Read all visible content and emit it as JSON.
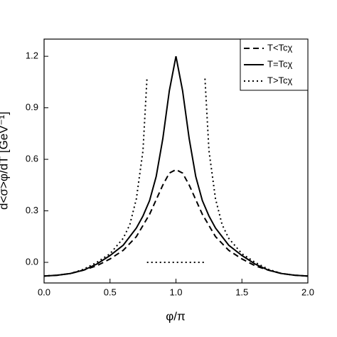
{
  "chart_data": {
    "type": "line",
    "x_label": "φ/π",
    "y_label": "d<σ>φ/dT [GeV⁻¹]",
    "xlim": [
      0,
      2
    ],
    "ylim": [
      -0.12,
      1.3
    ],
    "xticks": [
      {
        "value": 0,
        "label": "0.0"
      },
      {
        "value": 0.5,
        "label": "0.5"
      },
      {
        "value": 1,
        "label": "1.0"
      },
      {
        "value": 1.5,
        "label": "1.5"
      },
      {
        "value": 2,
        "label": "2.0"
      }
    ],
    "yticks": [
      {
        "value": 0,
        "label": "0.0"
      },
      {
        "value": 0.3,
        "label": "0.3"
      },
      {
        "value": 0.6,
        "label": "0.6"
      },
      {
        "value": 0.9,
        "label": "0.9"
      },
      {
        "value": 1.2,
        "label": "1.2"
      }
    ],
    "legend_position": "upper right",
    "series": [
      {
        "name": "T<Tcχ",
        "color": "#000000",
        "dash": "8,5",
        "x": [
          0,
          0.1,
          0.2,
          0.3,
          0.4,
          0.5,
          0.6,
          0.7,
          0.8,
          0.9,
          0.95,
          1.0,
          1.05,
          1.1,
          1.2,
          1.3,
          1.4,
          1.5,
          1.6,
          1.7,
          1.8,
          1.9,
          2.0
        ],
        "values": [
          -0.08,
          -0.075,
          -0.065,
          -0.045,
          -0.02,
          0.02,
          0.07,
          0.15,
          0.28,
          0.45,
          0.52,
          0.54,
          0.52,
          0.45,
          0.28,
          0.15,
          0.07,
          0.02,
          -0.02,
          -0.045,
          -0.065,
          -0.075,
          -0.08
        ]
      },
      {
        "name": "T=Tcχ",
        "color": "#000000",
        "dash": "none",
        "x": [
          0,
          0.1,
          0.2,
          0.3,
          0.4,
          0.5,
          0.6,
          0.7,
          0.75,
          0.8,
          0.85,
          0.9,
          0.95,
          1.0,
          1.05,
          1.1,
          1.15,
          1.2,
          1.25,
          1.3,
          1.4,
          1.5,
          1.6,
          1.7,
          1.8,
          1.9,
          2.0
        ],
        "values": [
          -0.08,
          -0.075,
          -0.065,
          -0.045,
          -0.01,
          0.04,
          0.1,
          0.2,
          0.27,
          0.36,
          0.5,
          0.72,
          1.0,
          1.2,
          1.0,
          0.72,
          0.5,
          0.36,
          0.27,
          0.2,
          0.1,
          0.04,
          -0.01,
          -0.045,
          -0.065,
          -0.075,
          -0.08
        ]
      },
      {
        "name": "T>Tcχ",
        "color": "#000000",
        "dash": "2,4",
        "x": [
          0,
          0.1,
          0.2,
          0.3,
          0.4,
          0.5,
          0.6,
          0.65,
          0.7,
          0.75,
          0.78,
          0.78,
          0.78,
          1.22,
          1.22,
          1.22,
          1.25,
          1.3,
          1.35,
          1.4,
          1.5,
          1.6,
          1.7,
          1.8,
          1.9,
          2.0
        ],
        "values": [
          -0.08,
          -0.075,
          -0.065,
          -0.04,
          0.0,
          0.05,
          0.14,
          0.22,
          0.37,
          0.65,
          1.07,
          null,
          0,
          0,
          null,
          1.07,
          0.65,
          0.37,
          0.22,
          0.14,
          0.05,
          0.0,
          -0.04,
          -0.065,
          -0.075,
          -0.08
        ]
      }
    ]
  }
}
